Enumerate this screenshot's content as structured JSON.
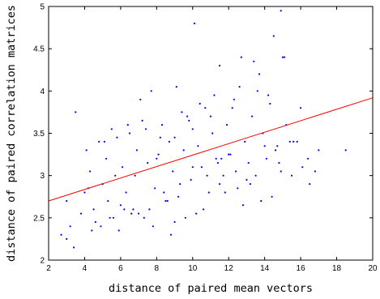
{
  "chart_data": {
    "type": "scatter",
    "title": "",
    "xlabel": "distance of paired mean vectors",
    "ylabel": "distance of paired correlation matrices",
    "xlim": [
      2,
      20
    ],
    "ylim": [
      2,
      5
    ],
    "xticks": [
      2,
      4,
      6,
      8,
      10,
      12,
      14,
      16,
      18,
      20
    ],
    "yticks": [
      2,
      2.5,
      3,
      3.5,
      4,
      4.5,
      5
    ],
    "xtick_labels": [
      "2",
      "4",
      "6",
      "8",
      "10",
      "12",
      "14",
      "16",
      "18",
      "20"
    ],
    "ytick_labels": [
      "2",
      "2.5",
      "3",
      "3.5",
      "4",
      "4.5",
      "5"
    ],
    "grid": false,
    "legend": "none",
    "point_color": "#0000ff",
    "line_color": "#ff0000",
    "trend_line": {
      "x": [
        2,
        20
      ],
      "y": [
        2.7,
        3.92
      ]
    },
    "series": [
      {
        "x": [
          2.7,
          3.0,
          3.2,
          3.4,
          3.5,
          3.8,
          4.0,
          4.1,
          4.3,
          4.5,
          4.6,
          4.8,
          5.0,
          5.2,
          5.3,
          5.5,
          5.7,
          5.9,
          6.1,
          6.3,
          6.5,
          6.7,
          6.9,
          7.1,
          7.3,
          7.5,
          7.7,
          7.9,
          8.1,
          8.3,
          8.5,
          8.7,
          8.9,
          9.1,
          9.3,
          9.5,
          9.7,
          9.9,
          10.1,
          10.3,
          10.5,
          10.7,
          10.9,
          11.1,
          11.3,
          11.5,
          11.7,
          11.9,
          12.1,
          12.3,
          12.5,
          12.7,
          12.9,
          13.1,
          13.3,
          13.5,
          13.7,
          13.9,
          14.1,
          14.3,
          14.5,
          14.7,
          14.9,
          15.2,
          15.5,
          15.8,
          16.1,
          16.5,
          17.0,
          18.5,
          3.0,
          4.2,
          5.1,
          6.0,
          6.8,
          7.6,
          8.4,
          9.2,
          10.0,
          10.8,
          11.6,
          12.4,
          13.2,
          14.0,
          14.8,
          15.6,
          16.4,
          9.0,
          10.2,
          11.5,
          13.8,
          14.9,
          15.1,
          7.8,
          8.8,
          9.6,
          10.6,
          12.8,
          14.4,
          6.4,
          7.2,
          9.4,
          11.0,
          12.2,
          13.6,
          5.8,
          6.6,
          7.4,
          8.2,
          9.8,
          10.4,
          11.2,
          12.6,
          13.4,
          14.2,
          5.4,
          6.2,
          7.0,
          8.6,
          11.8,
          13.0,
          15.0,
          16.0,
          4.4,
          4.9,
          5.6,
          8.0,
          9.0,
          10.0,
          11.4,
          12.0,
          14.6,
          15.4,
          16.8
        ],
        "y": [
          2.3,
          2.25,
          2.4,
          2.15,
          3.75,
          2.55,
          2.8,
          3.3,
          3.05,
          2.6,
          2.45,
          3.4,
          2.9,
          3.2,
          2.7,
          3.55,
          3.0,
          2.35,
          3.1,
          2.8,
          3.5,
          2.6,
          3.3,
          3.9,
          2.5,
          3.15,
          4.0,
          2.85,
          3.25,
          3.6,
          2.7,
          3.4,
          3.05,
          4.05,
          2.9,
          3.3,
          3.7,
          2.95,
          4.8,
          3.35,
          3.1,
          3.8,
          2.8,
          3.5,
          3.2,
          4.3,
          3.0,
          3.6,
          3.25,
          3.9,
          2.85,
          4.4,
          3.4,
          3.15,
          3.7,
          3.0,
          4.2,
          3.5,
          3.2,
          3.85,
          4.65,
          3.35,
          4.95,
          3.6,
          3.0,
          3.4,
          3.1,
          2.9,
          3.3,
          3.3,
          2.7,
          2.85,
          3.4,
          2.65,
          3.0,
          2.6,
          2.8,
          2.75,
          3.1,
          3.0,
          3.2,
          3.05,
          2.9,
          3.35,
          3.15,
          3.4,
          3.2,
          2.45,
          2.55,
          2.9,
          2.7,
          3.05,
          4.4,
          2.4,
          2.3,
          2.5,
          2.6,
          2.65,
          2.75,
          3.6,
          3.65,
          3.75,
          3.7,
          3.8,
          4.0,
          3.45,
          2.55,
          3.55,
          3.45,
          3.65,
          3.85,
          3.95,
          4.05,
          4.35,
          3.95,
          2.5,
          2.6,
          2.55,
          2.7,
          2.8,
          2.95,
          4.4,
          3.8,
          2.35,
          2.4,
          2.5,
          3.2,
          3.45,
          3.55,
          3.15,
          3.25,
          3.3,
          3.4,
          3.05
        ]
      }
    ]
  }
}
